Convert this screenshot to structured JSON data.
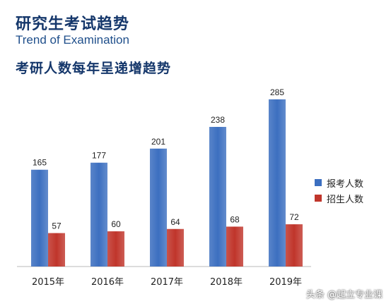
{
  "header": {
    "title": "研究生考试趋势",
    "subtitle": "Trend of Examination",
    "headline": "考研人数每年呈递增趋势"
  },
  "watermark": "头条 @起立专业课",
  "colors": {
    "applicants": "#3c6fc0",
    "admitted": "#c0352b"
  },
  "chart_data": {
    "type": "bar",
    "categories": [
      "2015年",
      "2016年",
      "2017年",
      "2018年",
      "2019年"
    ],
    "series": [
      {
        "name": "报考人数",
        "values": [
          165,
          177,
          201,
          238,
          285
        ]
      },
      {
        "name": "招生人数",
        "values": [
          57,
          60,
          64,
          68,
          72
        ]
      }
    ],
    "ylim": [
      0,
      300
    ],
    "grid": false,
    "legend": "right"
  }
}
